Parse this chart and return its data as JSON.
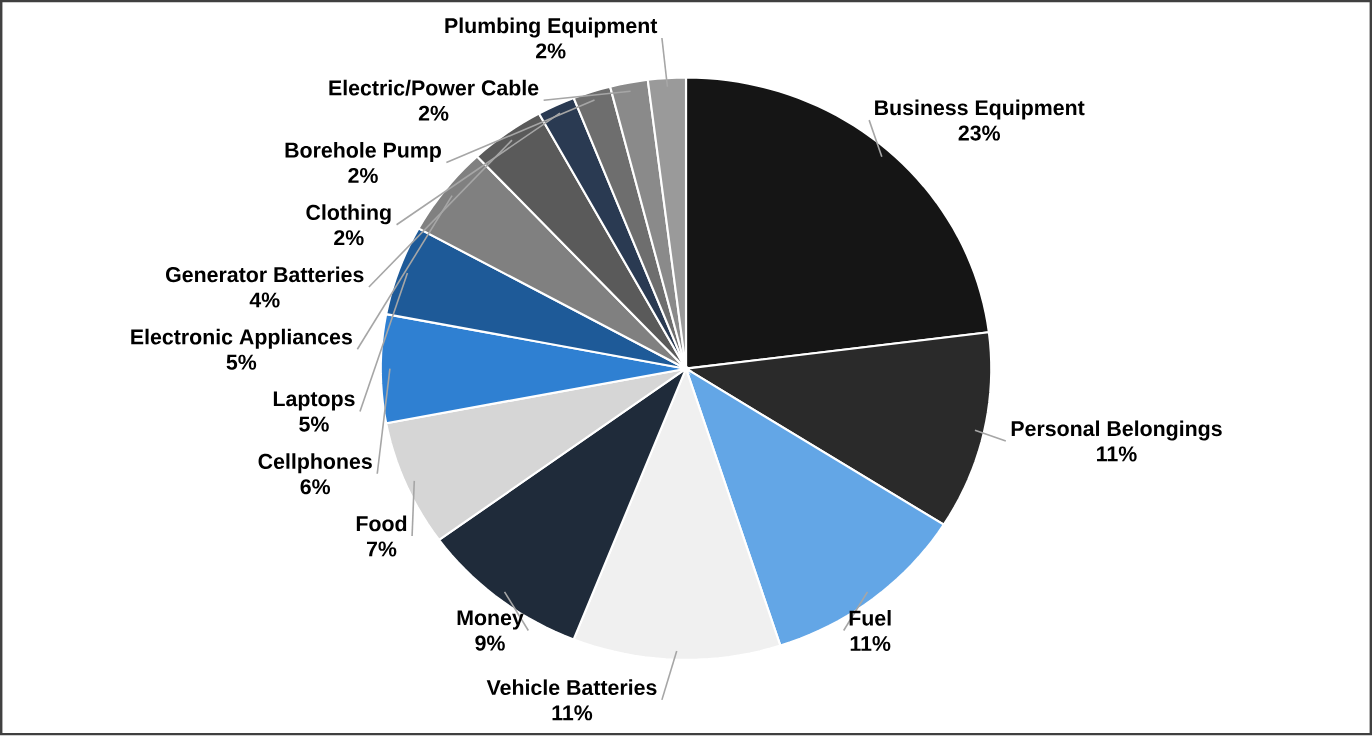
{
  "chart_data": {
    "type": "pie",
    "categories": [
      "Business Equipment",
      "Personal Belongings",
      "Fuel",
      "Vehicle Batteries",
      "Money",
      "Food",
      "Cellphones",
      "Laptops",
      "Electronic Appliances",
      "Generator Batteries",
      "Clothing",
      "Borehole Pump",
      "Electric/Power Cable",
      "Plumbing Equipment"
    ],
    "values": [
      23,
      11,
      11,
      11,
      9,
      7,
      6,
      5,
      5,
      4,
      2,
      2,
      2,
      2
    ],
    "value_labels": [
      "23%",
      "11%",
      "11%",
      "11%",
      "9%",
      "7%",
      "6%",
      "5%",
      "5%",
      "4%",
      "2%",
      "2%",
      "2%",
      "2%"
    ],
    "colors": [
      "#151515",
      "#2a2a2a",
      "#63a6e6",
      "#f0f0f0",
      "#1f2b3a",
      "#d6d6d6",
      "#2f80d2",
      "#1e5a98",
      "#808080",
      "#5a5a5a",
      "#2a3a52",
      "#6e6e6e",
      "#8a8a8a",
      "#9a9a9a"
    ]
  }
}
